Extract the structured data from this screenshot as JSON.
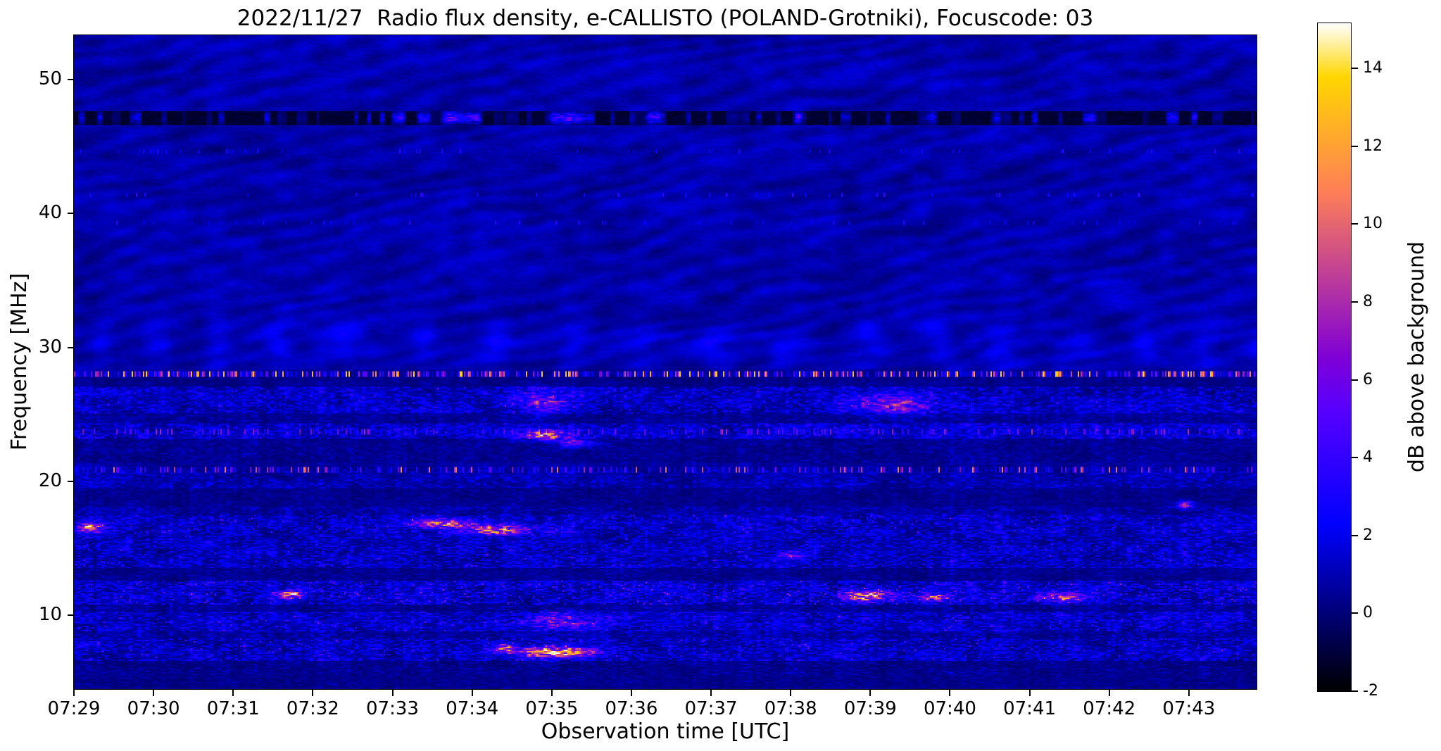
{
  "page": {
    "background": "#ffffff",
    "text_color": "#000000"
  },
  "chart_data": {
    "type": "heatmap",
    "title": "2022/11/27  Radio flux density, e-CALLISTO (POLAND-Grotniki), Focuscode: 03",
    "xlabel": "Observation time [UTC]",
    "ylabel": "Frequency [MHz]",
    "x_tick_labels": [
      "07:29",
      "07:30",
      "07:31",
      "07:32",
      "07:33",
      "07:34",
      "07:35",
      "07:36",
      "07:37",
      "07:38",
      "07:39",
      "07:40",
      "07:41",
      "07:42",
      "07:43"
    ],
    "x_tick_minutes": [
      0,
      1,
      2,
      3,
      4,
      5,
      6,
      7,
      8,
      9,
      10,
      11,
      12,
      13,
      14
    ],
    "time_start": "07:29",
    "time_span_minutes": 14.85,
    "y_ticks": [
      10,
      20,
      30,
      40,
      50
    ],
    "y_range": [
      4.5,
      53.3
    ],
    "grid": false,
    "legend": "none",
    "colorbar": {
      "label": "dB above background",
      "ticks": [
        -2,
        0,
        2,
        4,
        6,
        8,
        10,
        12,
        14
      ],
      "range": [
        -2,
        15.16
      ],
      "colormap": "gnuplot2",
      "color_anchors": [
        "#000000",
        "#0000ff",
        "#8000d6",
        "#ff8057",
        "#ffd600",
        "#ffffff"
      ]
    },
    "features": {
      "boundary_mhz": 28.35,
      "background": {
        "base": 0.35,
        "n1_gain": 0.55,
        "n2_gain": 1.0,
        "n3_gain": 0.5,
        "wave_gain": 0.3
      },
      "ripples": [
        {
          "fc": 30.4,
          "fw": 1.6,
          "gain": 1.1,
          "base": 0.15,
          "k": 0.14,
          "wobble": 5.0,
          "wobble_k": 0.0045
        },
        {
          "fc": 34.0,
          "fw": 1.3,
          "gain": 0.45,
          "base": 0.0,
          "k": 0.09,
          "wobble": 4.0,
          "wobble_k": 0.004
        }
      ],
      "dark_band": {
        "f1": 46.65,
        "f2": 47.7,
        "fc": 47.2,
        "fw": 0.4,
        "level": -1.5,
        "threshold": 0.6,
        "gain": 11,
        "bursts": [
          {
            "t": 4.7,
            "dt": 0.5,
            "amp": 0.5
          },
          {
            "t": 6.2,
            "dt": 0.3,
            "amp": 0.4
          },
          {
            "t": 7.3,
            "dt": 0.2,
            "amp": 0.35
          },
          {
            "t": 9.1,
            "dt": 0.15,
            "amp": 0.3
          },
          {
            "t": 11.7,
            "dt": 0.15,
            "amp": 0.3
          },
          {
            "t": 13.9,
            "dt": 0.2,
            "amp": 0.35
          }
        ]
      },
      "upper_lines": [
        {
          "f": 44.7,
          "w": 0.15,
          "density": 0.06,
          "vmin": 1.5,
          "vmax": 4.0
        },
        {
          "f": 41.4,
          "w": 0.15,
          "density": 0.08,
          "vmin": 1.5,
          "vmax": 4.5
        },
        {
          "f": 39.3,
          "w": 0.15,
          "density": 0.07,
          "vmin": 1.5,
          "vmax": 4.0
        }
      ],
      "bands": [
        {
          "f1": 27.1,
          "f2": 27.85,
          "base": 0.0,
          "amp": 1.0
        },
        {
          "f1": 25.1,
          "f2": 27.1,
          "base": 0.35,
          "amp": 2.6,
          "spark": 0.03,
          "sparkAmp": 4.0
        },
        {
          "f1": 24.4,
          "f2": 25.1,
          "base": 0.1,
          "amp": 1.3
        },
        {
          "f1": 23.2,
          "f2": 24.4,
          "base": 0.4,
          "amp": 2.8,
          "spark": 0.05,
          "sparkAmp": 4.0
        },
        {
          "f1": 21.5,
          "f2": 23.2,
          "base": 0.05,
          "amp": 1.2
        },
        {
          "f1": 19.6,
          "f2": 20.9,
          "base": 0.25,
          "amp": 1.9
        },
        {
          "f1": 18.2,
          "f2": 19.6,
          "base": 0.0,
          "amp": 1.0
        },
        {
          "f1": 17.6,
          "f2": 18.2,
          "base": 0.2,
          "amp": 1.7
        },
        {
          "f1": 16.2,
          "f2": 17.6,
          "base": 0.35,
          "amp": 2.7,
          "spark": 0.06,
          "sparkAmp": 4.5
        },
        {
          "f1": 15.3,
          "f2": 16.2,
          "base": 0.35,
          "amp": 2.4,
          "spark": 0.03,
          "sparkAmp": 3.0
        },
        {
          "f1": 13.6,
          "f2": 15.3,
          "base": 0.3,
          "amp": 2.6,
          "spark": 0.04,
          "sparkAmp": 4.0
        },
        {
          "f1": 12.6,
          "f2": 13.6,
          "base": 0.05,
          "amp": 1.1
        },
        {
          "f1": 10.9,
          "f2": 12.6,
          "base": 0.35,
          "amp": 3.0,
          "spark": 0.08,
          "sparkAmp": 5.0
        },
        {
          "f1": 10.3,
          "f2": 10.9,
          "base": 0.1,
          "amp": 1.4
        },
        {
          "f1": 8.9,
          "f2": 10.3,
          "base": 0.4,
          "amp": 2.7,
          "spark": 0.05,
          "sparkAmp": 4.0
        },
        {
          "f1": 8.3,
          "f2": 8.9,
          "base": 0.2,
          "amp": 1.7
        },
        {
          "f1": 6.7,
          "f2": 8.3,
          "base": 0.35,
          "amp": 2.6,
          "spark": 0.06,
          "sparkAmp": 4.5
        },
        {
          "f1": 5.6,
          "f2": 6.7,
          "base": 0.0,
          "amp": 1.2
        },
        {
          "f1": 4.5,
          "f2": 5.6,
          "base": 0.05,
          "amp": 0.9
        }
      ],
      "rfi_lines": [
        {
          "f": 28.05,
          "w": 0.22,
          "density": 0.55,
          "vmin": 1.5,
          "vmax": 14.0
        },
        {
          "f": 23.72,
          "w": 0.2,
          "density": 0.35,
          "vmin": 1.0,
          "vmax": 8.0
        },
        {
          "f": 20.95,
          "w": 0.2,
          "density": 0.32,
          "vmin": 1.5,
          "vmax": 11.0
        }
      ],
      "bursts": [
        {
          "t": 0.2,
          "f": 16.6,
          "dt": 0.15,
          "df": 0.35,
          "amp": 9.0
        },
        {
          "t": 4.6,
          "f": 16.9,
          "dt": 0.35,
          "df": 0.3,
          "amp": 9.0
        },
        {
          "t": 5.3,
          "f": 16.4,
          "dt": 0.4,
          "df": 0.35,
          "amp": 9.0
        },
        {
          "t": 6.0,
          "f": 7.3,
          "dt": 0.45,
          "df": 0.35,
          "amp": 12.5
        },
        {
          "t": 5.4,
          "f": 7.6,
          "dt": 0.15,
          "df": 0.3,
          "amp": 7.0
        },
        {
          "t": 5.9,
          "f": 23.5,
          "dt": 0.3,
          "df": 0.35,
          "amp": 8.0
        },
        {
          "t": 6.3,
          "f": 22.9,
          "dt": 0.2,
          "df": 0.3,
          "amp": 6.0
        },
        {
          "t": 5.9,
          "f": 26.0,
          "dt": 0.35,
          "df": 0.8,
          "amp": 4.5
        },
        {
          "t": 10.3,
          "f": 25.8,
          "dt": 0.5,
          "df": 0.7,
          "amp": 5.0
        },
        {
          "t": 2.7,
          "f": 11.6,
          "dt": 0.15,
          "df": 0.3,
          "amp": 9.0
        },
        {
          "t": 9.95,
          "f": 11.5,
          "dt": 0.3,
          "df": 0.35,
          "amp": 10.0
        },
        {
          "t": 10.8,
          "f": 11.4,
          "dt": 0.25,
          "df": 0.3,
          "amp": 7.0
        },
        {
          "t": 12.4,
          "f": 11.4,
          "dt": 0.3,
          "df": 0.35,
          "amp": 6.0
        },
        {
          "t": 13.95,
          "f": 18.3,
          "dt": 0.1,
          "df": 0.25,
          "amp": 7.0
        },
        {
          "t": 9.0,
          "f": 14.5,
          "dt": 0.15,
          "df": 0.3,
          "amp": 5.0
        },
        {
          "t": 6.1,
          "f": 9.6,
          "dt": 0.5,
          "df": 0.55,
          "amp": 4.0
        }
      ]
    }
  }
}
